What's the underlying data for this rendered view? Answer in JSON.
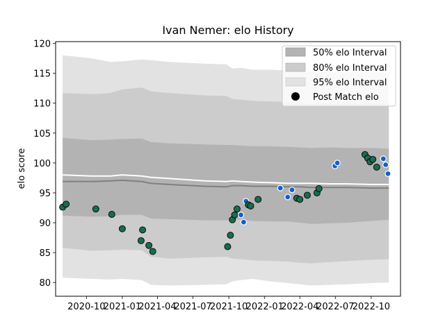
{
  "chart_data": {
    "type": "line",
    "title": "Ivan Nemer: elo History",
    "xlabel": "",
    "ylabel": "elo score",
    "ylim": [
      77.7,
      120.3
    ],
    "yticks": [
      80,
      85,
      90,
      95,
      100,
      105,
      110,
      115,
      120
    ],
    "xlim": [
      "2020-07-14",
      "2022-12-15"
    ],
    "xticks": [
      {
        "date": "2020-10-01",
        "label": "2020-10"
      },
      {
        "date": "2021-01-01",
        "label": "2021-01"
      },
      {
        "date": "2021-04-01",
        "label": "2021-04"
      },
      {
        "date": "2021-07-01",
        "label": "2021-07"
      },
      {
        "date": "2021-10-01",
        "label": "2021-10"
      },
      {
        "date": "2022-01-01",
        "label": "2022-01"
      },
      {
        "date": "2022-04-01",
        "label": "2022-04"
      },
      {
        "date": "2022-07-01",
        "label": "2022-07"
      },
      {
        "date": "2022-10-01",
        "label": "2022-10"
      }
    ],
    "legend": {
      "placement": "top-right",
      "entries": [
        {
          "label": "50% elo Interval",
          "color": "#b3b3b3"
        },
        {
          "label": "80% elo Interval",
          "color": "#cccccc"
        },
        {
          "label": "95% elo Interval",
          "color": "#e2e2e2"
        },
        {
          "label": "Post Match elo",
          "color": "#000000"
        }
      ]
    },
    "bands": {
      "dates": [
        "2020-08-01",
        "2020-10-15",
        "2020-12-01",
        "2021-01-01",
        "2021-02-20",
        "2021-03-15",
        "2021-05-01",
        "2021-08-01",
        "2021-09-25",
        "2021-10-10",
        "2021-11-01",
        "2021-12-01",
        "2022-01-15",
        "2022-03-01",
        "2022-04-01",
        "2022-05-01",
        "2022-06-15",
        "2022-08-01",
        "2022-10-01",
        "2022-11-15"
      ],
      "median": [
        96.9,
        96.9,
        97.0,
        97.1,
        96.9,
        96.6,
        96.4,
        96.1,
        96.0,
        96.2,
        96.2,
        96.1,
        96.1,
        96.0,
        96.0,
        95.9,
        95.9,
        95.9,
        95.8,
        95.8
      ],
      "mean_line": [
        98.0,
        97.8,
        97.8,
        98.0,
        97.8,
        97.6,
        97.4,
        97.0,
        96.9,
        97.0,
        96.9,
        96.8,
        96.7,
        96.6,
        96.6,
        96.6,
        96.5,
        96.5,
        96.4,
        96.4
      ],
      "p50_low": [
        91.2,
        91.0,
        91.1,
        91.3,
        91.3,
        90.7,
        90.6,
        90.4,
        90.4,
        90.6,
        90.5,
        90.3,
        90.2,
        90.2,
        90.0,
        89.8,
        89.9,
        90.0,
        90.3,
        90.5
      ],
      "p50_high": [
        104.2,
        103.8,
        103.9,
        104.0,
        104.1,
        103.5,
        103.3,
        103.1,
        103.0,
        103.0,
        102.9,
        102.8,
        102.8,
        102.7,
        102.6,
        102.5,
        102.6,
        102.5,
        102.5,
        102.4
      ],
      "p80_low": [
        85.8,
        85.3,
        85.4,
        85.5,
        85.4,
        84.3,
        84.0,
        84.2,
        84.3,
        84.0,
        83.9,
        83.7,
        83.6,
        83.5,
        83.3,
        83.2,
        83.4,
        83.6,
        83.8,
        83.9
      ],
      "p80_high": [
        111.7,
        111.5,
        111.7,
        112.3,
        112.6,
        112.0,
        111.7,
        111.3,
        111.2,
        110.7,
        110.6,
        110.4,
        110.3,
        110.2,
        110.0,
        109.9,
        109.9,
        109.9,
        110.0,
        110.0
      ],
      "p95_low": [
        80.8,
        80.6,
        80.5,
        80.6,
        80.4,
        79.6,
        79.5,
        79.6,
        79.7,
        80.2,
        80.4,
        80.6,
        80.2,
        79.9,
        79.7,
        79.5,
        79.6,
        79.7,
        79.9,
        80.0
      ],
      "p95_high": [
        118.0,
        117.5,
        116.9,
        117.0,
        117.3,
        117.2,
        116.9,
        116.6,
        116.5,
        115.8,
        115.9,
        115.6,
        115.6,
        115.5,
        115.4,
        115.3,
        115.2,
        115.2,
        115.2,
        115.1
      ]
    },
    "series": [
      {
        "name": "Post Match elo",
        "points": [
          {
            "date": "2020-08-01",
            "elo": 92.6,
            "kind": "green"
          },
          {
            "date": "2020-08-10",
            "elo": 93.1,
            "kind": "green"
          },
          {
            "date": "2020-10-25",
            "elo": 92.3,
            "kind": "green"
          },
          {
            "date": "2020-12-05",
            "elo": 91.4,
            "kind": "green"
          },
          {
            "date": "2021-01-01",
            "elo": 89.0,
            "kind": "green"
          },
          {
            "date": "2021-02-18",
            "elo": 87.0,
            "kind": "green"
          },
          {
            "date": "2021-02-22",
            "elo": 88.8,
            "kind": "green"
          },
          {
            "date": "2021-03-10",
            "elo": 86.2,
            "kind": "green"
          },
          {
            "date": "2021-03-20",
            "elo": 85.2,
            "kind": "green"
          },
          {
            "date": "2021-09-28",
            "elo": 86.0,
            "kind": "green"
          },
          {
            "date": "2021-10-05",
            "elo": 87.9,
            "kind": "green"
          },
          {
            "date": "2021-10-10",
            "elo": 90.5,
            "kind": "green"
          },
          {
            "date": "2021-10-16",
            "elo": 91.3,
            "kind": "green"
          },
          {
            "date": "2021-10-22",
            "elo": 92.3,
            "kind": "green"
          },
          {
            "date": "2021-11-01",
            "elo": 91.3,
            "kind": "blue"
          },
          {
            "date": "2021-11-08",
            "elo": 90.1,
            "kind": "blue"
          },
          {
            "date": "2021-11-14",
            "elo": 93.6,
            "kind": "blue"
          },
          {
            "date": "2021-11-20",
            "elo": 93.0,
            "kind": "green"
          },
          {
            "date": "2021-11-26",
            "elo": 92.8,
            "kind": "green"
          },
          {
            "date": "2021-12-15",
            "elo": 93.9,
            "kind": "green"
          },
          {
            "date": "2022-02-10",
            "elo": 95.8,
            "kind": "blue"
          },
          {
            "date": "2022-03-01",
            "elo": 94.3,
            "kind": "blue"
          },
          {
            "date": "2022-03-12",
            "elo": 95.5,
            "kind": "blue"
          },
          {
            "date": "2022-03-24",
            "elo": 94.1,
            "kind": "green"
          },
          {
            "date": "2022-04-01",
            "elo": 93.9,
            "kind": "green"
          },
          {
            "date": "2022-04-20",
            "elo": 94.6,
            "kind": "green"
          },
          {
            "date": "2022-05-15",
            "elo": 95.0,
            "kind": "green"
          },
          {
            "date": "2022-05-20",
            "elo": 95.7,
            "kind": "green"
          },
          {
            "date": "2022-06-30",
            "elo": 99.5,
            "kind": "blue"
          },
          {
            "date": "2022-07-06",
            "elo": 100.0,
            "kind": "blue"
          },
          {
            "date": "2022-09-15",
            "elo": 101.4,
            "kind": "green"
          },
          {
            "date": "2022-09-22",
            "elo": 100.8,
            "kind": "green"
          },
          {
            "date": "2022-09-28",
            "elo": 100.2,
            "kind": "green"
          },
          {
            "date": "2022-10-05",
            "elo": 100.6,
            "kind": "green"
          },
          {
            "date": "2022-10-15",
            "elo": 99.3,
            "kind": "green"
          },
          {
            "date": "2022-11-01",
            "elo": 100.7,
            "kind": "blue"
          },
          {
            "date": "2022-11-07",
            "elo": 99.7,
            "kind": "blue"
          },
          {
            "date": "2022-11-13",
            "elo": 98.2,
            "kind": "blue"
          }
        ]
      }
    ],
    "colors": {
      "green_marker": "#1b6b4e",
      "blue_marker": "#1060c8",
      "median_line": "#808080",
      "mean_line": "#ffffff",
      "band_50": "#b3b3b3",
      "band_80": "#cccccc",
      "band_95": "#e2e2e2"
    }
  }
}
